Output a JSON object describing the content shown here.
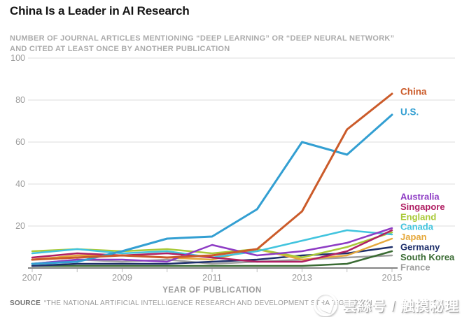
{
  "header": {
    "title": "China Is a Leader in AI Research",
    "subtitle_line1": "NUMBER OF JOURNAL ARTICLES MENTIONING “DEEP LEARNING” OR “DEEP NEURAL NETWORK”",
    "subtitle_line2": "AND CITED AT LEAST ONCE BY ANOTHER PUBLICATION"
  },
  "chart_data": {
    "type": "line",
    "x": [
      2007,
      2008,
      2009,
      2010,
      2011,
      2012,
      2013,
      2014,
      2015
    ],
    "xticks_labeled": [
      2007,
      2009,
      2011,
      2013,
      2015
    ],
    "xlabel": "YEAR OF PUBLICATION",
    "ylim": [
      0,
      100
    ],
    "yticks": [
      20,
      40,
      60,
      80,
      100
    ],
    "grid": "horizontal-only",
    "legend_position": "right-of-line-endpoints",
    "series": [
      {
        "name": "China",
        "color": "#CB5B2A",
        "values": [
          4,
          5,
          6,
          5,
          6,
          9,
          27,
          66,
          83
        ]
      },
      {
        "name": "U.S.",
        "color": "#339FD2",
        "values": [
          2,
          3,
          8,
          14,
          15,
          28,
          60,
          54,
          73
        ]
      },
      {
        "name": "Australia",
        "color": "#8D3BC4",
        "values": [
          2,
          4,
          4,
          3,
          11,
          6,
          8,
          12,
          19
        ]
      },
      {
        "name": "Singapore",
        "color": "#B01F63",
        "values": [
          5,
          7,
          6,
          7,
          5,
          3,
          3,
          8,
          18
        ]
      },
      {
        "name": "England",
        "color": "#A9C938",
        "values": [
          8,
          9,
          8,
          9,
          7,
          9,
          5,
          10,
          17
        ]
      },
      {
        "name": "Canada",
        "color": "#41C4DE",
        "values": [
          7,
          9,
          7,
          8,
          5,
          8,
          13,
          18,
          16
        ]
      },
      {
        "name": "Japan",
        "color": "#E5A83C",
        "values": [
          4,
          6,
          6,
          5,
          4,
          9,
          4,
          6,
          14
        ]
      },
      {
        "name": "Germany",
        "color": "#1E2F6B",
        "values": [
          1,
          2,
          2,
          2,
          3,
          4,
          6,
          7,
          10
        ]
      },
      {
        "name": "South Korea",
        "color": "#3A6B33",
        "values": [
          1,
          1,
          1,
          1,
          1,
          1,
          1,
          2,
          8
        ]
      },
      {
        "name": "France",
        "color": "#A0A0A0",
        "values": [
          2,
          4,
          3,
          4,
          2,
          3,
          4,
          5,
          6
        ]
      }
    ]
  },
  "source": {
    "label": "SOURCE",
    "text": "“THE NATIONAL ARTIFICIAL INTELLIGENCE RESEARCH AND DEVELOPMENT STRATEGIC PLAN"
  },
  "watermark": {
    "logo": "circle-swirl-logo",
    "text": "雲絲号 / 触摸秘理"
  },
  "colors": {
    "title": "#151515",
    "subtitle": "#ababab",
    "axis_text": "#9b9b9b",
    "gridline": "#dedede",
    "baseline": "#3c3c3c"
  }
}
